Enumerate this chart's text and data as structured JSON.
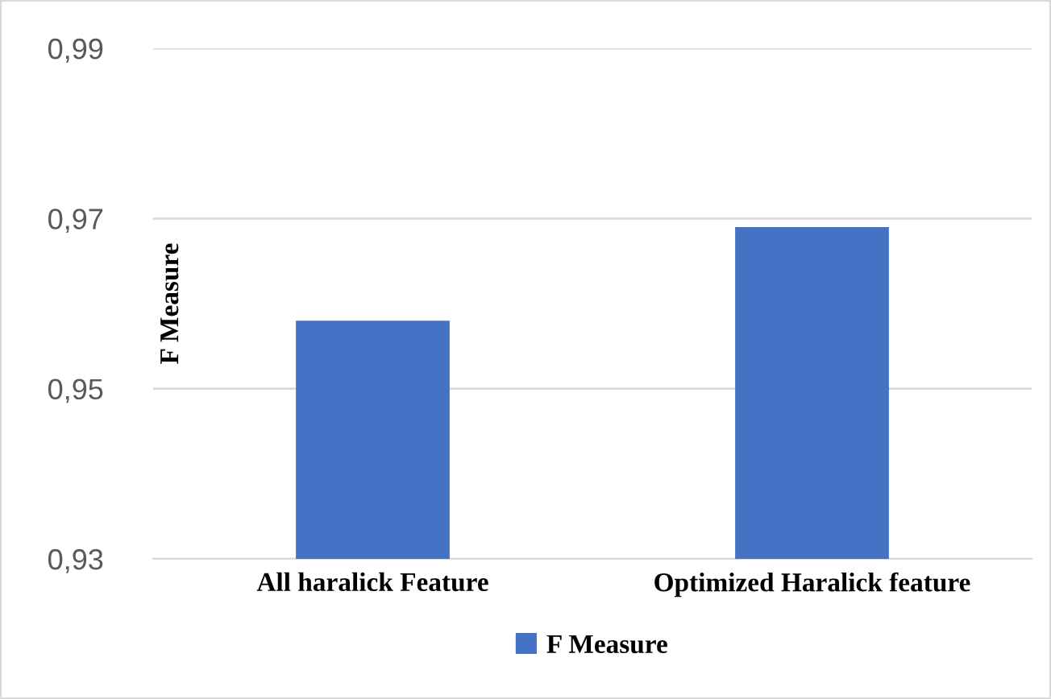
{
  "chart_data": {
    "type": "bar",
    "ylabel": "F Measure",
    "categories": [
      "All haralick Feature",
      "Optimized Haralick feature"
    ],
    "series": [
      {
        "name": "F Measure",
        "color": "#4472c4",
        "values": [
          0.958,
          0.969
        ]
      }
    ],
    "ylim": [
      0.93,
      0.99
    ],
    "yticks": [
      {
        "value": 0.93,
        "label": "0,93"
      },
      {
        "value": 0.95,
        "label": "0,95"
      },
      {
        "value": 0.97,
        "label": "0,97"
      },
      {
        "value": 0.99,
        "label": "0,99"
      }
    ],
    "grid": "y",
    "legend": "bottom"
  }
}
